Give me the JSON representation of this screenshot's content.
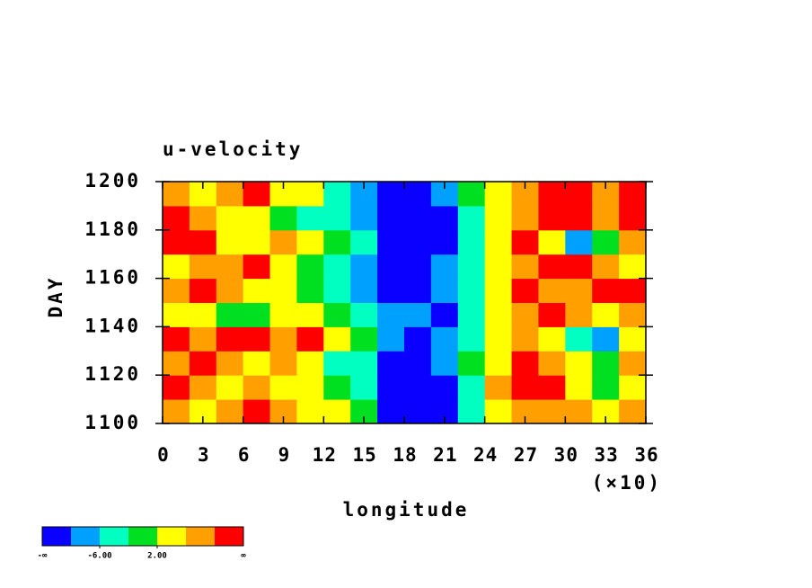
{
  "chart_data": {
    "type": "heatmap",
    "title": "u-velocity",
    "xlabel": "longitude",
    "x_scale_label": "(×10)",
    "ylabel": "DAY",
    "xlim": [
      0,
      36
    ],
    "xticks": [
      0,
      3,
      6,
      9,
      12,
      15,
      18,
      21,
      24,
      27,
      30,
      33,
      36
    ],
    "ylim": [
      1100,
      1200
    ],
    "yticks": [
      1100,
      1120,
      1140,
      1160,
      1180,
      1200
    ],
    "x": [
      1,
      3,
      5,
      7,
      9,
      11,
      13,
      15,
      17,
      19,
      21,
      23,
      25,
      27,
      29,
      31,
      33,
      35
    ],
    "y": [
      1105,
      1115,
      1125,
      1135,
      1145,
      1155,
      1165,
      1175,
      1185,
      1195
    ],
    "z": [
      [
        8,
        4,
        6,
        12,
        7,
        5,
        3,
        -2,
        -12,
        -12,
        -11,
        -3,
        4,
        9,
        8,
        6,
        3,
        8
      ],
      [
        12,
        6,
        3,
        8,
        5,
        4,
        -1,
        -6,
        -12,
        -11,
        -12,
        -4,
        6,
        11,
        12,
        5,
        1,
        4
      ],
      [
        6,
        11,
        8,
        4,
        7,
        2,
        -3,
        -5,
        -11,
        -12,
        -9,
        -2,
        3,
        11,
        9,
        4,
        -2,
        6
      ],
      [
        11,
        9,
        12,
        11,
        8,
        12,
        5,
        -2,
        -8,
        -11,
        -10,
        -3,
        4,
        7,
        5,
        -3,
        -8,
        5
      ],
      [
        5,
        2,
        -2,
        1,
        4,
        3,
        -1,
        -4,
        -10,
        -9,
        -11,
        -5,
        3,
        8,
        11,
        6,
        4,
        9
      ],
      [
        9,
        12,
        6,
        5,
        3,
        -2,
        -4,
        -7,
        -12,
        -11,
        -10,
        -4,
        5,
        11,
        9,
        7,
        11,
        12
      ],
      [
        3,
        6,
        8,
        11,
        5,
        1,
        -3,
        -9,
        -13,
        -12,
        -9,
        -3,
        4,
        8,
        12,
        11,
        6,
        4
      ],
      [
        12,
        11,
        4,
        2,
        6,
        3,
        -1,
        -5,
        -11,
        -12,
        -13,
        -6,
        3,
        10,
        5,
        -7,
        -1,
        8
      ],
      [
        10,
        8,
        5,
        2,
        1,
        -4,
        -6,
        -8,
        -12,
        -13,
        -11,
        -5,
        4,
        9,
        12,
        11,
        7,
        12
      ],
      [
        6,
        3,
        8,
        10,
        4,
        2,
        -3,
        -9,
        -12,
        -11,
        -10,
        -2,
        5,
        8,
        11,
        12,
        7,
        12
      ]
    ],
    "levels": [
      -10,
      -6,
      -2,
      2,
      6,
      10
    ],
    "colors": [
      "#0a00ff",
      "#00a0ff",
      "#00ffc0",
      "#00e020",
      "#ffff00",
      "#ffa000",
      "#ff0000"
    ],
    "colorbar_ticks": [
      {
        "value": -6,
        "label": "-6.00"
      },
      {
        "value": 2,
        "label": "2.00"
      }
    ],
    "colorbar_ends": [
      "-∞",
      "∞"
    ]
  }
}
